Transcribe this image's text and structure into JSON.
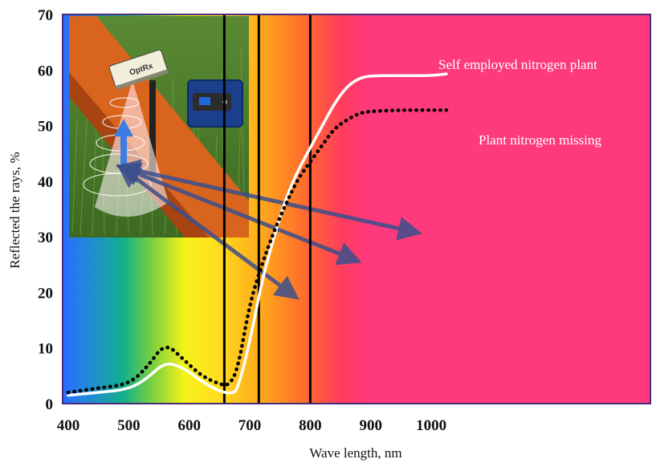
{
  "chart_data": {
    "type": "line",
    "xlabel": "Wave length, nm",
    "ylabel": "Reflected the rays, %",
    "xlim": [
      400,
      1030
    ],
    "ylim": [
      0,
      70
    ],
    "x_ticks": [
      400,
      500,
      600,
      700,
      800,
      900,
      1000
    ],
    "y_ticks": [
      0,
      10,
      20,
      30,
      40,
      50,
      60,
      70
    ],
    "grid": false,
    "vertical_lines": [
      658,
      715,
      800
    ],
    "series": [
      {
        "name": "Self employed nitrogen plant",
        "style": "solid",
        "color": "#ffffff",
        "x": [
          400,
          450,
          500,
          530,
          560,
          590,
          620,
          650,
          670,
          680,
          700,
          720,
          740,
          760,
          780,
          800,
          820,
          840,
          860,
          880,
          900,
          950,
          1000,
          1025
        ],
        "y": [
          1.5,
          2.0,
          2.6,
          4.5,
          7.5,
          6.5,
          4.0,
          2.2,
          1.8,
          2.5,
          11.0,
          22.0,
          30.0,
          37.0,
          42.0,
          46.0,
          50.0,
          54.0,
          57.0,
          58.5,
          59.0,
          59.0,
          59.0,
          59.3
        ]
      },
      {
        "name": "Plant nitrogen missing",
        "style": "dotted",
        "color": "#000000",
        "x": [
          400,
          450,
          500,
          530,
          560,
          590,
          620,
          650,
          665,
          680,
          700,
          720,
          740,
          760,
          780,
          800,
          820,
          840,
          860,
          880,
          900,
          950,
          1000,
          1025
        ],
        "y": [
          2.0,
          2.8,
          3.5,
          6.5,
          11.0,
          8.0,
          5.0,
          3.5,
          3.2,
          6.0,
          18.0,
          25.0,
          31.0,
          36.0,
          40.5,
          43.5,
          46.5,
          49.5,
          51.0,
          52.2,
          52.6,
          52.8,
          52.8,
          52.8
        ]
      }
    ],
    "annotations": [
      "Self employed nitrogen plant",
      "Plant nitrogen missing"
    ],
    "inset_logo_text": "OptRx"
  }
}
